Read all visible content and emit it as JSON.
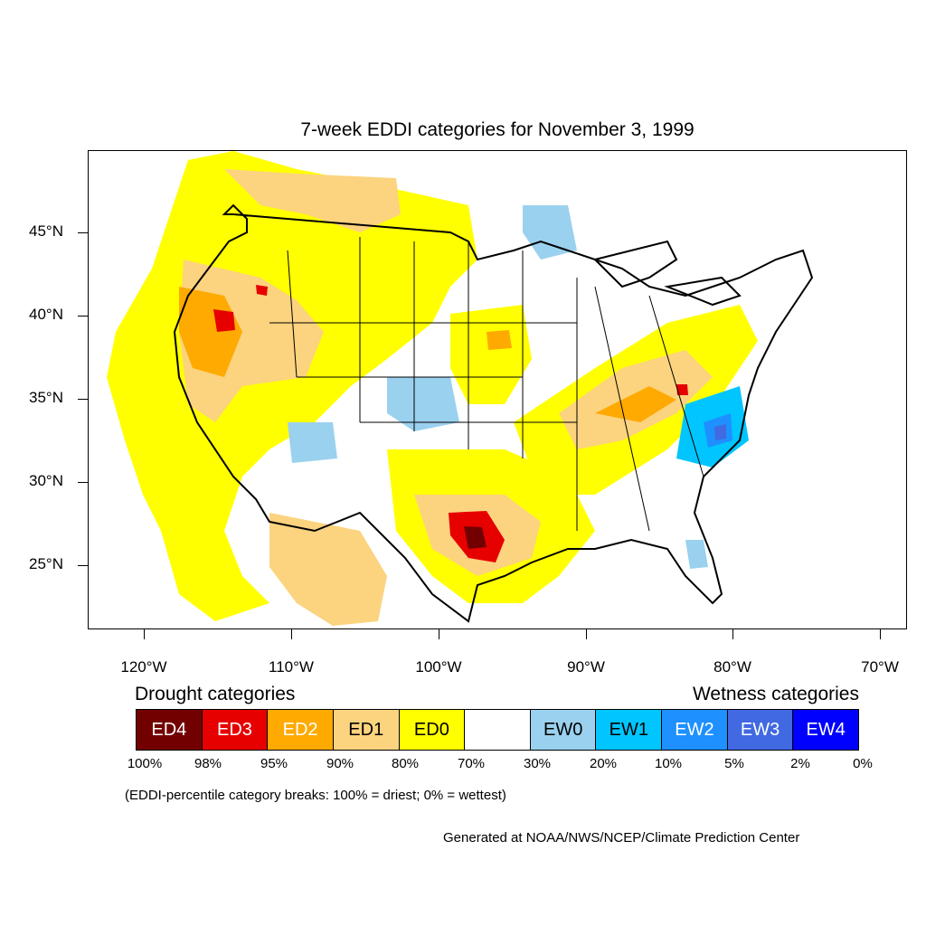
{
  "title": "7-week EDDI categories for November 3, 1999",
  "axes": {
    "lat_labels": [
      "45°N",
      "40°N",
      "35°N",
      "30°N",
      "25°N"
    ],
    "lon_labels": [
      "120°W",
      "110°W",
      "100°W",
      "90°W",
      "80°W",
      "70°W"
    ]
  },
  "legend": {
    "drought_heading": "Drought categories",
    "wetness_heading": "Wetness categories",
    "categories": [
      {
        "label": "ED4",
        "color": "#730000",
        "text_color": "#ffffff"
      },
      {
        "label": "ED3",
        "color": "#e60000",
        "text_color": "#ffffff"
      },
      {
        "label": "ED2",
        "color": "#ffaa00",
        "text_color": "#ffffff"
      },
      {
        "label": "ED1",
        "color": "#fcd37f",
        "text_color": "#000000"
      },
      {
        "label": "ED0",
        "color": "#ffff00",
        "text_color": "#000000"
      },
      {
        "label": "",
        "color": "#ffffff",
        "text_color": "#000000"
      },
      {
        "label": "EW0",
        "color": "#9ad1ef",
        "text_color": "#000000"
      },
      {
        "label": "EW1",
        "color": "#00c5ff",
        "text_color": "#000000"
      },
      {
        "label": "EW2",
        "color": "#1e90ff",
        "text_color": "#ffffff"
      },
      {
        "label": "EW3",
        "color": "#4169e1",
        "text_color": "#ffffff"
      },
      {
        "label": "EW4",
        "color": "#0000ff",
        "text_color": "#ffffff"
      }
    ],
    "percent_breaks": [
      "100%",
      "98%",
      "95%",
      "90%",
      "80%",
      "70%",
      "30%",
      "20%",
      "10%",
      "5%",
      "2%",
      "0%"
    ]
  },
  "note": "(EDDI-percentile category breaks: 100% = driest; 0% = wettest)",
  "credit": "Generated at NOAA/NWS/NCEP/Climate Prediction Center"
}
